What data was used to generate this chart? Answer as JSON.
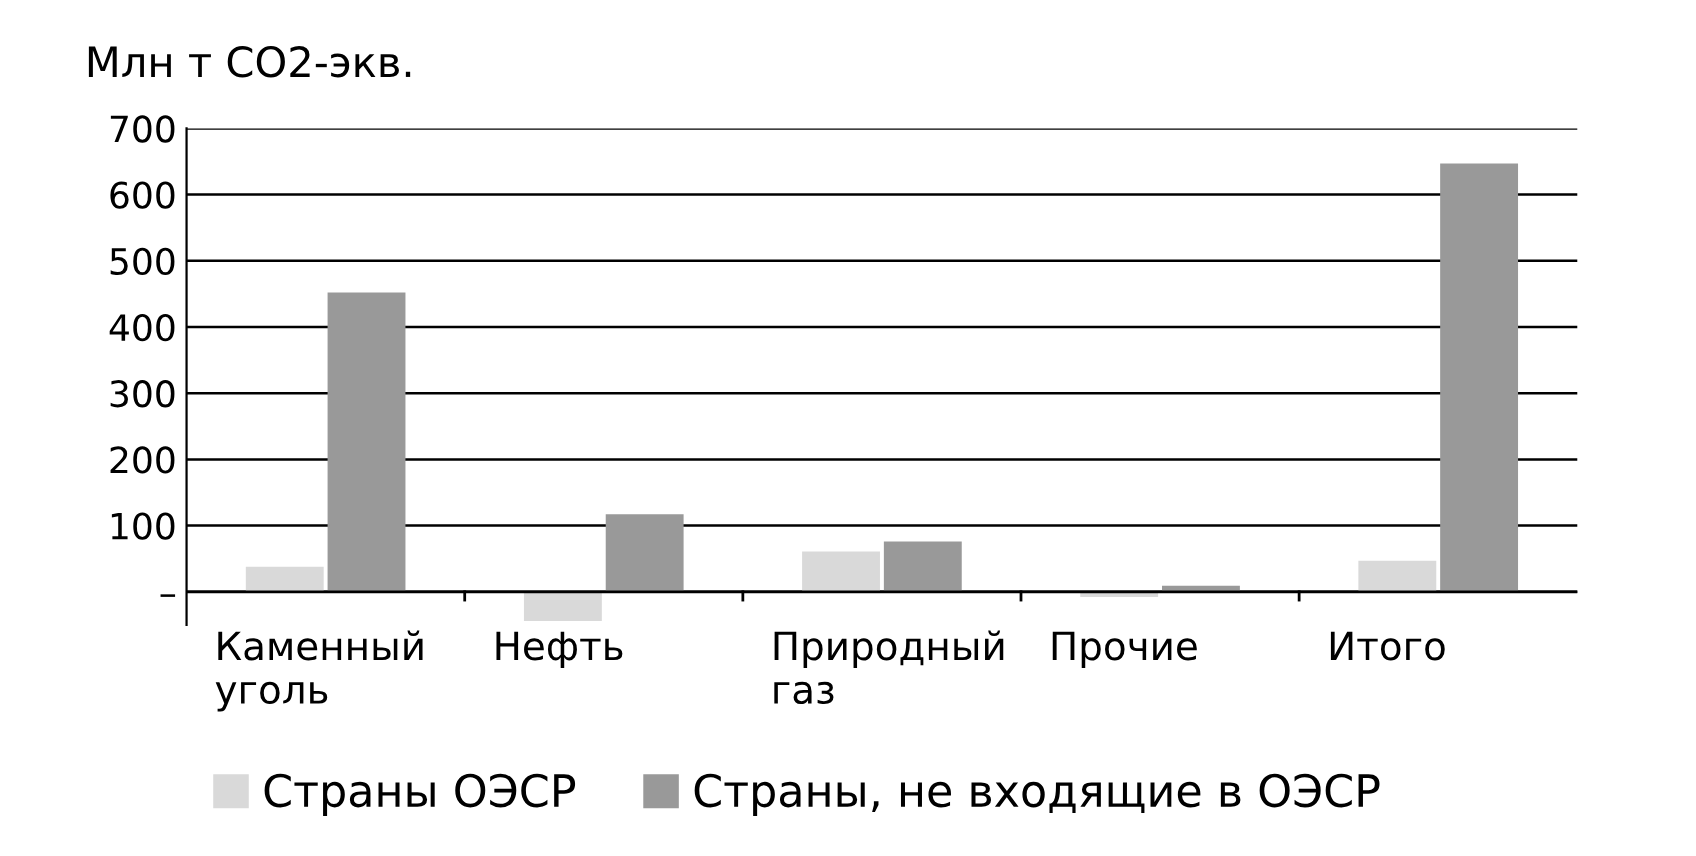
{
  "chart_data": {
    "type": "bar",
    "ylabel": "Млн т CO2-экв.",
    "categories": [
      "Каменный\nуголь",
      "Нефть",
      "Природный\nгаз",
      "Прочие",
      "Итого"
    ],
    "series": [
      {
        "name": "Страны ОЭСР",
        "color": "#d9d9d9",
        "values": [
          38,
          -44,
          61,
          -8,
          47
        ]
      },
      {
        "name": "Страны, не входящие в ОЭСР",
        "color": "#999999",
        "values": [
          452,
          117,
          76,
          9,
          647
        ]
      }
    ],
    "ylim": [
      -50,
      700
    ],
    "yticks": [
      {
        "value": 0,
        "label": "–"
      },
      100,
      200,
      300,
      400,
      500,
      600,
      700
    ],
    "grid": "y",
    "legend": "bottom"
  }
}
